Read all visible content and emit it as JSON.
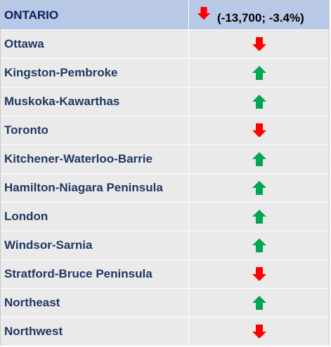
{
  "header": {
    "region": "ONTARIO",
    "direction": "down",
    "value": "(-13,700; -3.4%)"
  },
  "colors": {
    "up": "#00a651",
    "down": "#ff0000",
    "header_bg": "#b7c9e7",
    "row_bg": "#eaeaea",
    "label": "#1f3864"
  },
  "rows": [
    {
      "name": "Ottawa",
      "direction": "down"
    },
    {
      "name": "Kingston-Pembroke",
      "direction": "up"
    },
    {
      "name": "Muskoka-Kawarthas",
      "direction": "up"
    },
    {
      "name": "Toronto",
      "direction": "down"
    },
    {
      "name": "Kitchener-Waterloo-Barrie",
      "direction": "up"
    },
    {
      "name": "Hamilton-Niagara Peninsula",
      "direction": "up"
    },
    {
      "name": "London",
      "direction": "up"
    },
    {
      "name": "Windsor-Sarnia",
      "direction": "up"
    },
    {
      "name": "Stratford-Bruce Peninsula",
      "direction": "down"
    },
    {
      "name": "Northeast",
      "direction": "up"
    },
    {
      "name": "Northwest",
      "direction": "down"
    }
  ]
}
